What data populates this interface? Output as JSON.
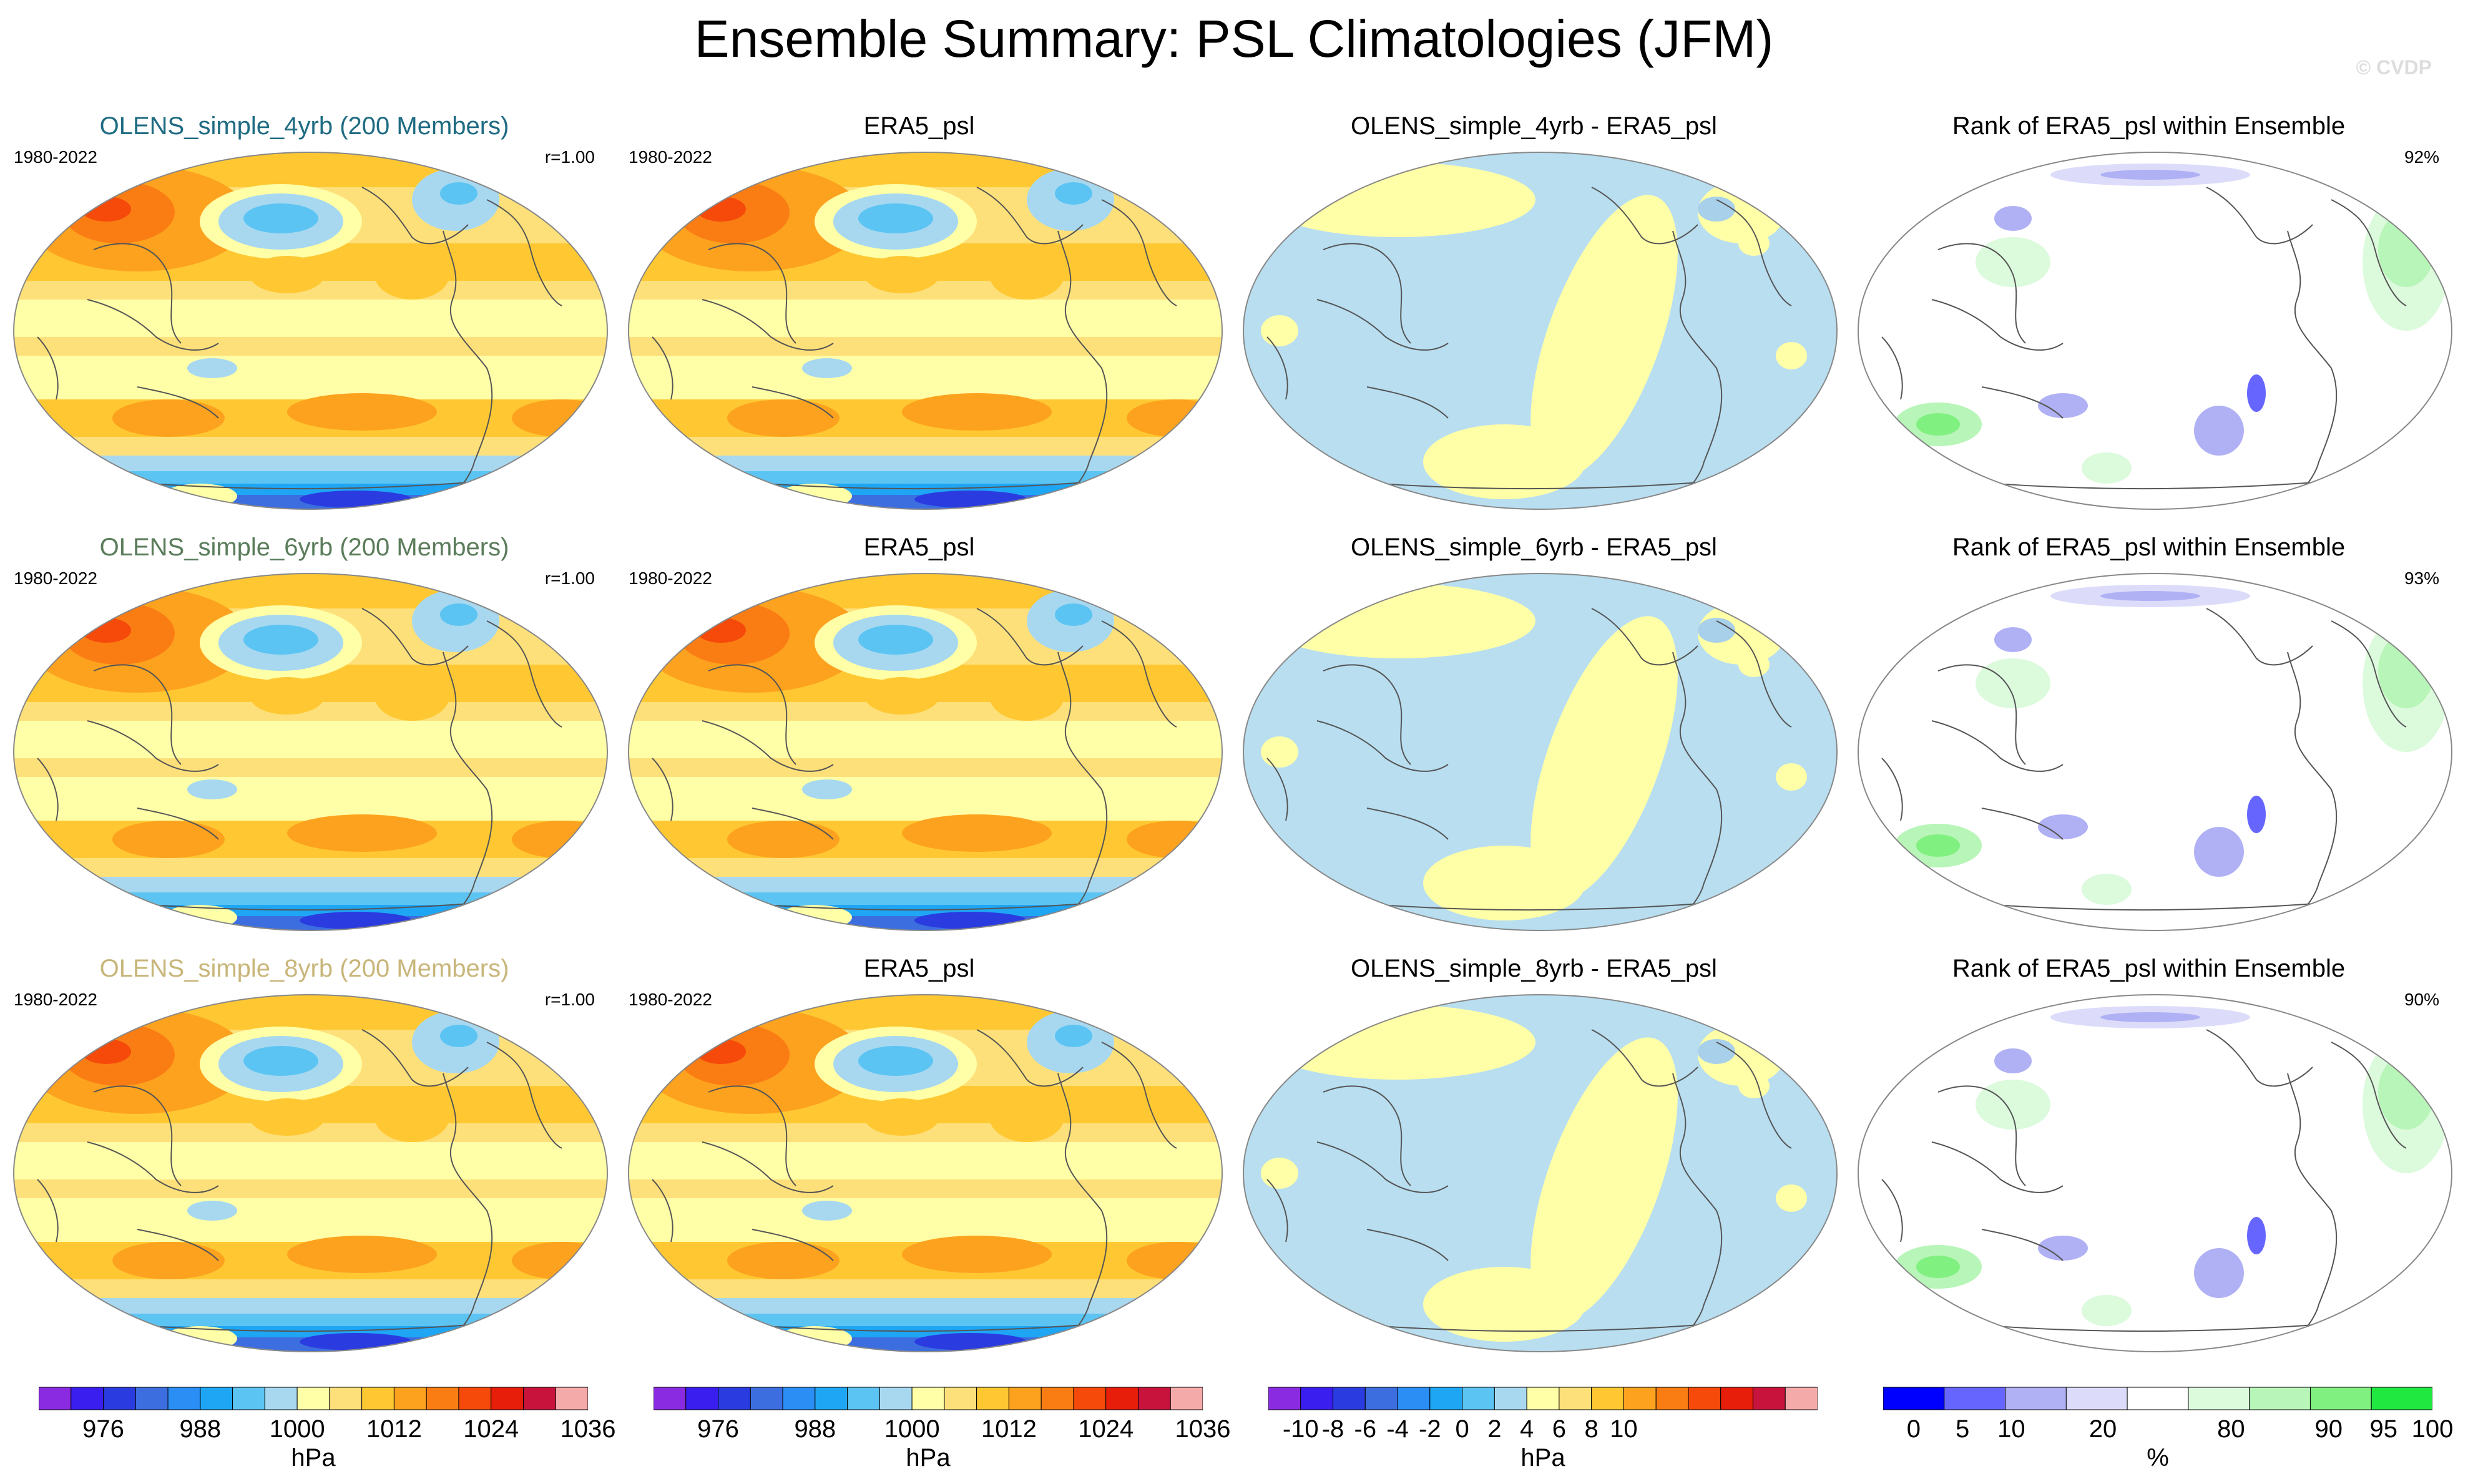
{
  "title": "Ensemble Summary: PSL Climatologies (JFM)",
  "copyright": "© CVDP",
  "chart_data": {
    "type": "heatmap",
    "layout": "3 rows x 4 columns of global map panels",
    "rows": [
      {
        "ensemble": {
          "title": "OLENS_simple_4yrb (200 Members)",
          "period": "1980-2022",
          "corr": "r=1.00"
        },
        "observation": {
          "title": "ERA5_psl",
          "period": "1980-2022"
        },
        "difference": {
          "title": "OLENS_simple_4yrb - ERA5_psl"
        },
        "rank": {
          "title": "Rank of ERA5_psl within Ensemble",
          "pct": "92%"
        }
      },
      {
        "ensemble": {
          "title": "OLENS_simple_6yrb (200 Members)",
          "period": "1980-2022",
          "corr": "r=1.00"
        },
        "observation": {
          "title": "ERA5_psl",
          "period": "1980-2022"
        },
        "difference": {
          "title": "OLENS_simple_6yrb - ERA5_psl"
        },
        "rank": {
          "title": "Rank of ERA5_psl within Ensemble",
          "pct": "93%"
        }
      },
      {
        "ensemble": {
          "title": "OLENS_simple_8yrb (200 Members)",
          "period": "1980-2022",
          "corr": "r=1.00"
        },
        "observation": {
          "title": "ERA5_psl",
          "period": "1980-2022"
        },
        "difference": {
          "title": "OLENS_simple_8yrb - ERA5_psl"
        },
        "rank": {
          "title": "Rank of ERA5_psl within Ensemble",
          "pct": "90%"
        }
      }
    ],
    "colorbars": [
      {
        "name": "psl",
        "unit": "hPa",
        "tick_labels": [
          "976",
          "988",
          "1000",
          "1012",
          "1024",
          "1036"
        ],
        "tick_positions": [
          2,
          5,
          8,
          11,
          14,
          17
        ],
        "colors": [
          "#8a2be2",
          "#3a1ef0",
          "#2a3ce0",
          "#3c6ee0",
          "#2a8ef5",
          "#1ea6f5",
          "#5cc4f2",
          "#a8d8f0",
          "#ffffa8",
          "#fde07a",
          "#ffc832",
          "#fda21e",
          "#fa7d14",
          "#f54a0a",
          "#e61e0a",
          "#c8143c",
          "#f5aaaa"
        ]
      },
      {
        "name": "psl",
        "unit": "hPa",
        "tick_labels": [
          "976",
          "988",
          "1000",
          "1012",
          "1024",
          "1036"
        ],
        "tick_positions": [
          2,
          5,
          8,
          11,
          14,
          17
        ],
        "colors": [
          "#8a2be2",
          "#3a1ef0",
          "#2a3ce0",
          "#3c6ee0",
          "#2a8ef5",
          "#1ea6f5",
          "#5cc4f2",
          "#a8d8f0",
          "#ffffa8",
          "#fde07a",
          "#ffc832",
          "#fda21e",
          "#fa7d14",
          "#f54a0a",
          "#e61e0a",
          "#c8143c",
          "#f5aaaa"
        ]
      },
      {
        "name": "difference",
        "unit": "hPa",
        "tick_labels": [
          "-10",
          "-8",
          "-6",
          "-4",
          "-2",
          "0",
          "2",
          "4",
          "6",
          "8",
          "10"
        ],
        "tick_positions": [
          1,
          2,
          3,
          4,
          5,
          6,
          7,
          8,
          9,
          10,
          11
        ],
        "colors": [
          "#8a2be2",
          "#3a1ef0",
          "#2a3ce0",
          "#3c6ee0",
          "#2a8ef5",
          "#1ea6f5",
          "#5cc4f2",
          "#a8d8f0",
          "#ffffa8",
          "#fde07a",
          "#ffc832",
          "#fda21e",
          "#fa7d14",
          "#f54a0a",
          "#e61e0a",
          "#c8143c",
          "#f5aaaa"
        ]
      },
      {
        "name": "rank",
        "unit": "%",
        "tick_labels": [
          "0",
          "5",
          "10",
          "20",
          "80",
          "90",
          "95",
          "100"
        ],
        "tick_positions": [
          0.5,
          1.3,
          2.1,
          3.6,
          5.7,
          7.3,
          8.2,
          9.0
        ],
        "colors": [
          "#0000ff",
          "#6666ff",
          "#b0b0f5",
          "#dcdcfa",
          "#ffffff",
          "#dcfadc",
          "#b8f5b8",
          "#80f080",
          "#20e840"
        ]
      }
    ]
  }
}
